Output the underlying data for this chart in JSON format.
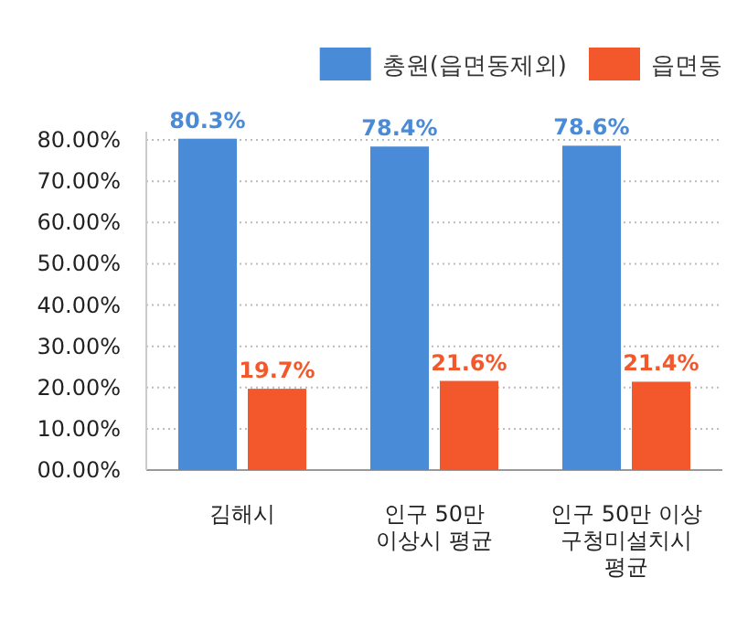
{
  "chart_data": {
    "type": "bar",
    "categories": [
      "김해시",
      "인구 50만\n이상시 평균",
      "인구 50만 이상\n구청미설치시\n평균"
    ],
    "series": [
      {
        "name": "총원(읍면동제외)",
        "color": "#4a8bd8",
        "values": [
          80.3,
          78.4,
          78.6
        ],
        "value_labels": [
          "80.3%",
          "78.4%",
          "78.6%"
        ]
      },
      {
        "name": "읍면동",
        "color": "#f2582c",
        "values": [
          19.7,
          21.6,
          21.4
        ],
        "value_labels": [
          "19.7%",
          "21.6%",
          "21.4%"
        ]
      }
    ],
    "ylim": [
      0,
      82
    ],
    "yticks": [
      {
        "value": 0,
        "label": "00.00%"
      },
      {
        "value": 10,
        "label": "10.00%"
      },
      {
        "value": 20,
        "label": "20.00%"
      },
      {
        "value": 30,
        "label": "30.00%"
      },
      {
        "value": 40,
        "label": "40.00%"
      },
      {
        "value": 50,
        "label": "50.00%"
      },
      {
        "value": 60,
        "label": "60.00%"
      },
      {
        "value": 70,
        "label": "70.00%"
      },
      {
        "value": 80,
        "label": "80.00%"
      }
    ],
    "grid": "y",
    "legend": "top right"
  }
}
